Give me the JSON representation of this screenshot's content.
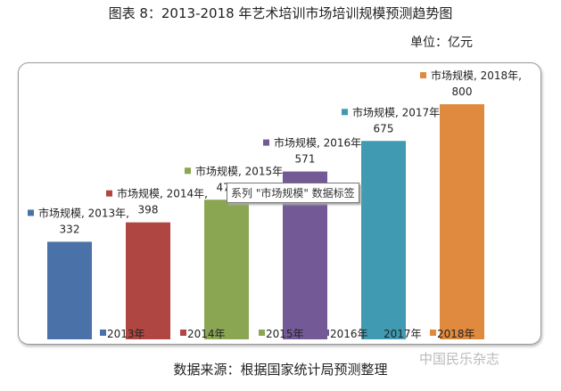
{
  "chart_data": {
    "type": "bar",
    "title": "图表 8：2013-2018 年艺术培训市场培训规模预测趋势图",
    "unit": "单位：亿元",
    "series_name": "市场规模",
    "categories": [
      "2013年",
      "2014年",
      "2015年",
      "2016年",
      "2017年",
      "2018年"
    ],
    "values": [
      332,
      398,
      475,
      571,
      675,
      800
    ],
    "colors": [
      "#4a72a8",
      "#b04641",
      "#8ba652",
      "#735a96",
      "#3f9ab2",
      "#e08a3f"
    ],
    "data_labels": [
      "市场规模, 2013年,",
      "市场规模, 2014年,",
      "市场规模, 2015年,",
      "市场规模, 2016年,",
      "市场规模, 2017年,",
      "市场规模, 2018年,"
    ],
    "legend_position": "bottom",
    "grid": false,
    "ylim": [
      0,
      850
    ]
  },
  "tooltip": "系列 \"市场规模\" 数据标签",
  "source": "数据来源：根据国家统计局预测整理",
  "watermark": "中国民乐杂志"
}
